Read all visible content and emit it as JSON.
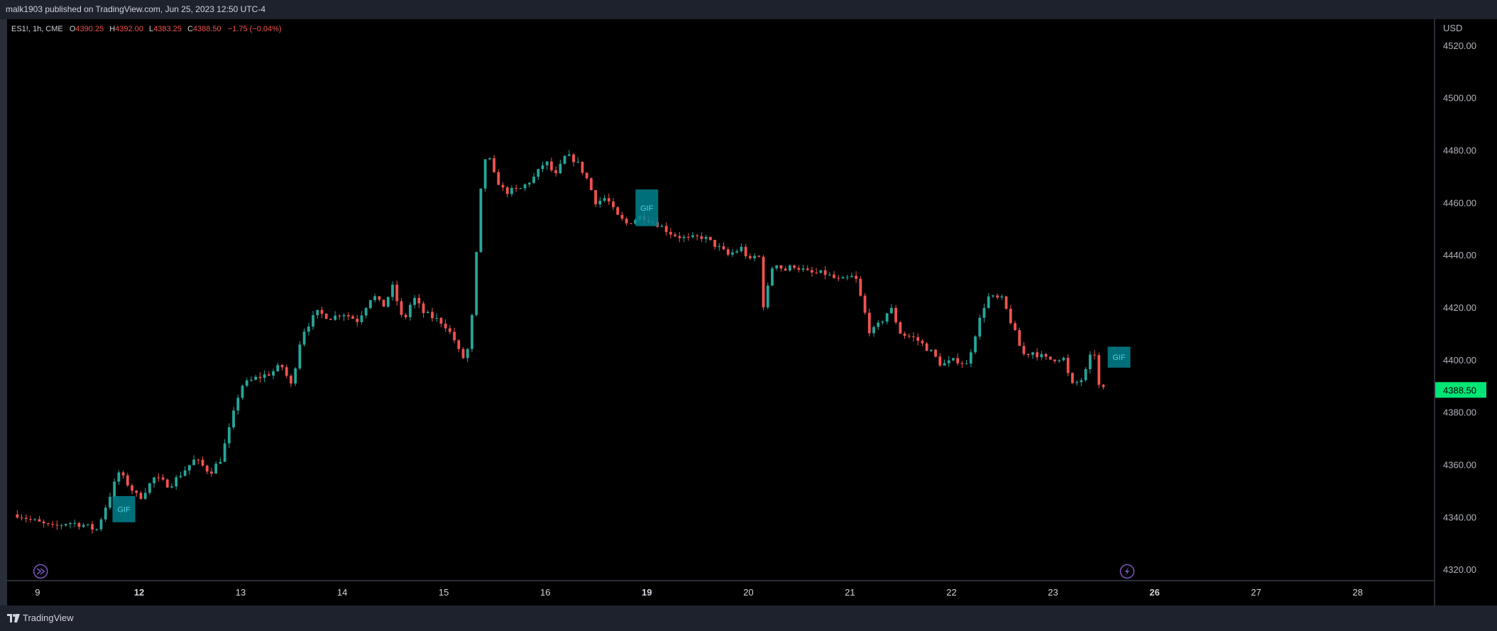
{
  "header": {
    "published": "malk1903 published on TradingView.com, Jun 25, 2023 12:50 UTC-4"
  },
  "legend": {
    "symbol": "ES1!, 1h, CME",
    "o_label": "O",
    "o_value": "4390.25",
    "h_label": "H",
    "h_value": "4392.00",
    "l_label": "L",
    "l_value": "4383.25",
    "c_label": "C",
    "c_value": "4388.50",
    "change": "−1.75 (−0.04%)"
  },
  "footer": {
    "brand": "TradingView"
  },
  "colors": {
    "up": "#26a69a",
    "down": "#ef5350",
    "background": "#000000",
    "price_tag": "#00e676",
    "gif_box": "#00838f",
    "event_icon": "#7e57c2"
  },
  "chart_data": {
    "type": "candlestick",
    "currency": "USD",
    "ylim": [
      4316,
      4530
    ],
    "y_ticks": [
      "4520.00",
      "4500.00",
      "4480.00",
      "4460.00",
      "4440.00",
      "4420.00",
      "4400.00",
      "4380.00",
      "4360.00",
      "4340.00",
      "4320.00"
    ],
    "x_ticks": [
      {
        "label": "9",
        "x": 8.2,
        "bold": false
      },
      {
        "label": "12",
        "x": 9.2,
        "bold": true
      },
      {
        "label": "13",
        "x": 10.2,
        "bold": false
      },
      {
        "label": "14",
        "x": 11.2,
        "bold": false
      },
      {
        "label": "15",
        "x": 12.2,
        "bold": false
      },
      {
        "label": "16",
        "x": 13.2,
        "bold": false
      },
      {
        "label": "19",
        "x": 14.2,
        "bold": true
      },
      {
        "label": "20",
        "x": 15.2,
        "bold": false
      },
      {
        "label": "21",
        "x": 16.2,
        "bold": false
      },
      {
        "label": "22",
        "x": 17.2,
        "bold": false
      },
      {
        "label": "23",
        "x": 18.2,
        "bold": false
      },
      {
        "label": "26",
        "x": 19.2,
        "bold": true
      },
      {
        "label": "27",
        "x": 20.2,
        "bold": false
      },
      {
        "label": "28",
        "x": 21.2,
        "bold": false
      }
    ],
    "xlim": [
      7.9,
      21.95
    ],
    "last_price": "4388.50",
    "gif_markers": [
      {
        "label": "GIF",
        "x": 9.05,
        "top": 4348,
        "bottom": 4338
      },
      {
        "label": "GIF",
        "x": 14.2,
        "top": 4465,
        "bottom": 4451
      },
      {
        "label": "GIF",
        "x": 18.85,
        "top": 4405,
        "bottom": 4397
      }
    ],
    "event_markers": [
      {
        "name": "fast-forward",
        "x": 8.23
      },
      {
        "name": "lightning",
        "x": 18.93
      }
    ],
    "anchors": [
      [
        8.0,
        4341
      ],
      [
        8.2,
        4338
      ],
      [
        8.35,
        4336
      ],
      [
        8.5,
        4338
      ],
      [
        8.65,
        4337
      ],
      [
        8.78,
        4335
      ],
      [
        8.9,
        4347
      ],
      [
        9.0,
        4357
      ],
      [
        9.1,
        4352
      ],
      [
        9.2,
        4347
      ],
      [
        9.35,
        4355
      ],
      [
        9.5,
        4352
      ],
      [
        9.6,
        4356
      ],
      [
        9.75,
        4362
      ],
      [
        9.9,
        4357
      ],
      [
        10.0,
        4362
      ],
      [
        10.1,
        4375
      ],
      [
        10.2,
        4390
      ],
      [
        10.35,
        4393
      ],
      [
        10.5,
        4395
      ],
      [
        10.6,
        4398
      ],
      [
        10.7,
        4390
      ],
      [
        10.8,
        4410
      ],
      [
        10.95,
        4418
      ],
      [
        11.1,
        4416
      ],
      [
        11.2,
        4418
      ],
      [
        11.35,
        4415
      ],
      [
        11.5,
        4425
      ],
      [
        11.6,
        4420
      ],
      [
        11.7,
        4428
      ],
      [
        11.8,
        4414
      ],
      [
        11.9,
        4424
      ],
      [
        12.0,
        4418
      ],
      [
        12.1,
        4416
      ],
      [
        12.2,
        4414
      ],
      [
        12.3,
        4408
      ],
      [
        12.38,
        4400
      ],
      [
        12.45,
        4405
      ],
      [
        12.5,
        4425
      ],
      [
        12.55,
        4460
      ],
      [
        12.62,
        4480
      ],
      [
        12.7,
        4470
      ],
      [
        12.8,
        4464
      ],
      [
        12.95,
        4465
      ],
      [
        13.1,
        4470
      ],
      [
        13.2,
        4476
      ],
      [
        13.3,
        4470
      ],
      [
        13.4,
        4478
      ],
      [
        13.5,
        4476
      ],
      [
        13.6,
        4470
      ],
      [
        13.7,
        4460
      ],
      [
        13.8,
        4462
      ],
      [
        13.9,
        4455
      ],
      [
        14.0,
        4452
      ],
      [
        14.15,
        4455
      ],
      [
        14.3,
        4452
      ],
      [
        14.45,
        4448
      ],
      [
        14.6,
        4446
      ],
      [
        14.75,
        4447
      ],
      [
        14.9,
        4443
      ],
      [
        15.0,
        4440
      ],
      [
        15.15,
        4443
      ],
      [
        15.2,
        4437
      ],
      [
        15.3,
        4441
      ],
      [
        15.35,
        4420
      ],
      [
        15.45,
        4438
      ],
      [
        15.55,
        4434
      ],
      [
        15.65,
        4436
      ],
      [
        15.8,
        4433
      ],
      [
        15.95,
        4433
      ],
      [
        16.1,
        4430
      ],
      [
        16.25,
        4432
      ],
      [
        16.4,
        4410
      ],
      [
        16.5,
        4414
      ],
      [
        16.6,
        4420
      ],
      [
        16.7,
        4410
      ],
      [
        16.85,
        4408
      ],
      [
        17.0,
        4403
      ],
      [
        17.1,
        4398
      ],
      [
        17.25,
        4400
      ],
      [
        17.35,
        4398
      ],
      [
        17.45,
        4412
      ],
      [
        17.55,
        4424
      ],
      [
        17.7,
        4423
      ],
      [
        17.8,
        4413
      ],
      [
        17.9,
        4402
      ],
      [
        18.0,
        4403
      ],
      [
        18.15,
        4400
      ],
      [
        18.3,
        4401
      ],
      [
        18.38,
        4390
      ],
      [
        18.5,
        4393
      ],
      [
        18.6,
        4405
      ],
      [
        18.65,
        4390
      ],
      [
        18.7,
        4388.5
      ]
    ]
  }
}
